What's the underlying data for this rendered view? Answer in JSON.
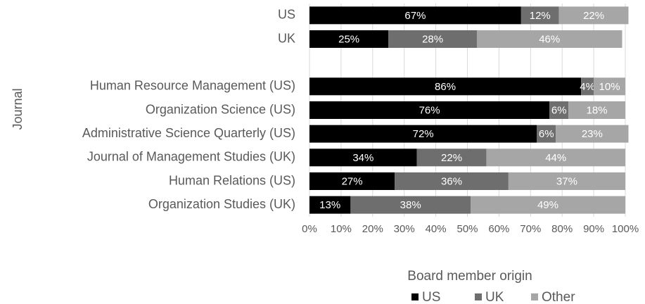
{
  "chart_data": {
    "type": "stacked_bar_horizontal",
    "y_label": "Journal",
    "legend_title": "Board member origin",
    "categories": [
      "US",
      "UK",
      null,
      "Human Resource Management (US)",
      "Organization Science (US)",
      "Administrative Science Quarterly (US)",
      "Journal of Management Studies (UK)",
      "Human Relations (US)",
      "Organization Studies (UK)"
    ],
    "series": [
      {
        "name": "US",
        "color": "#000000",
        "values": [
          67,
          25,
          null,
          86,
          76,
          72,
          34,
          27,
          13
        ],
        "value_labels": [
          "67%",
          "25%",
          null,
          "86%",
          "76%",
          "72%",
          "34%",
          "27%",
          "13%"
        ]
      },
      {
        "name": "UK",
        "color": "#6e6e6e",
        "values": [
          12,
          28,
          null,
          4,
          6,
          6,
          22,
          36,
          38
        ],
        "value_labels": [
          "12%",
          "28%",
          null,
          "4%",
          "6%",
          "6%",
          "22%",
          "36%",
          "38%"
        ]
      },
      {
        "name": "Other",
        "color": "#a6a6a6",
        "values": [
          22,
          46,
          null,
          10,
          18,
          23,
          44,
          37,
          49
        ],
        "value_labels": [
          "22%",
          "46%",
          null,
          "10%",
          "18%",
          "23%",
          "44%",
          "37%",
          "49%"
        ]
      }
    ],
    "xlim": [
      0,
      100
    ],
    "xticks": [
      {
        "value": 0,
        "label": "0%"
      },
      {
        "value": 10,
        "label": "10%"
      },
      {
        "value": 20,
        "label": "20%"
      },
      {
        "value": 30,
        "label": "30%"
      },
      {
        "value": 40,
        "label": "40%"
      },
      {
        "value": 50,
        "label": "50%"
      },
      {
        "value": 60,
        "label": "60%"
      },
      {
        "value": 70,
        "label": "70%"
      },
      {
        "value": 80,
        "label": "80%"
      },
      {
        "value": 90,
        "label": "90%"
      },
      {
        "value": 100,
        "label": "100%"
      }
    ],
    "grid": true,
    "legend": "bottom"
  }
}
